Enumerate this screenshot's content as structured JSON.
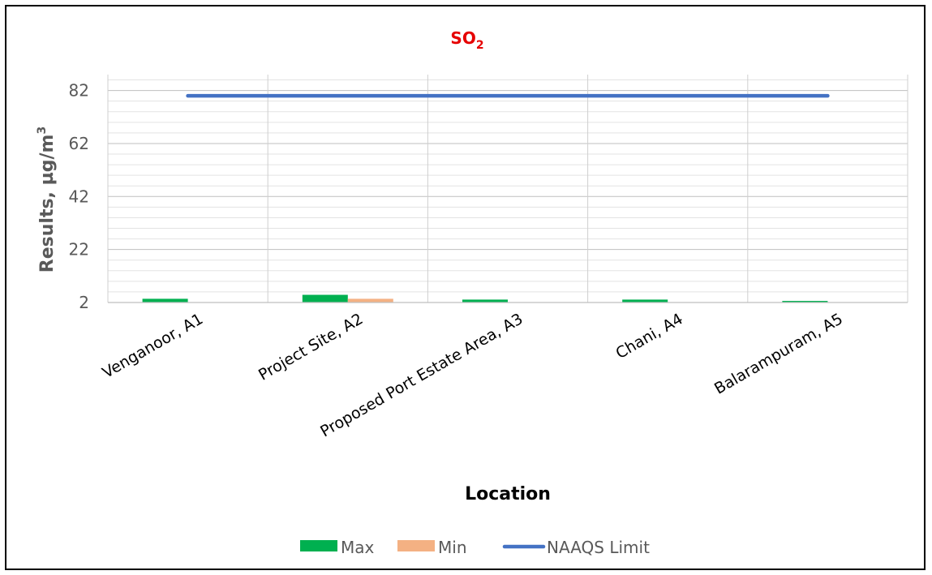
{
  "chart_data": {
    "type": "bar",
    "title": "SO",
    "title_subscript": "2",
    "title_color": "#e60000",
    "xlabel": "Location",
    "ylabel": "Results, µg/m",
    "ylabel_superscript": "3",
    "ylabel_color": "#595959",
    "categories": [
      "Venganoor, A1",
      "Project Site, A2",
      "Proposed Port Estate Area, A3",
      "Chani, A4",
      "Balarampuram, A5"
    ],
    "series": [
      {
        "name": "Max",
        "kind": "bar",
        "color": "#00b050",
        "values": [
          3.4,
          4.9,
          3.1,
          3.1,
          2.6
        ]
      },
      {
        "name": "Min",
        "kind": "bar",
        "color": "#f4b183",
        "values": [
          2.0,
          3.4,
          2.0,
          2.0,
          2.0
        ]
      },
      {
        "name": "NAAQS Limit",
        "kind": "line",
        "color": "#4472c4",
        "values": [
          80,
          80,
          80,
          80,
          80
        ]
      }
    ],
    "ylim": [
      2,
      88
    ],
    "yticks": [
      2,
      22,
      42,
      62,
      82
    ],
    "minor_grid_step": 4,
    "grid": true,
    "legend_position": "bottom"
  }
}
